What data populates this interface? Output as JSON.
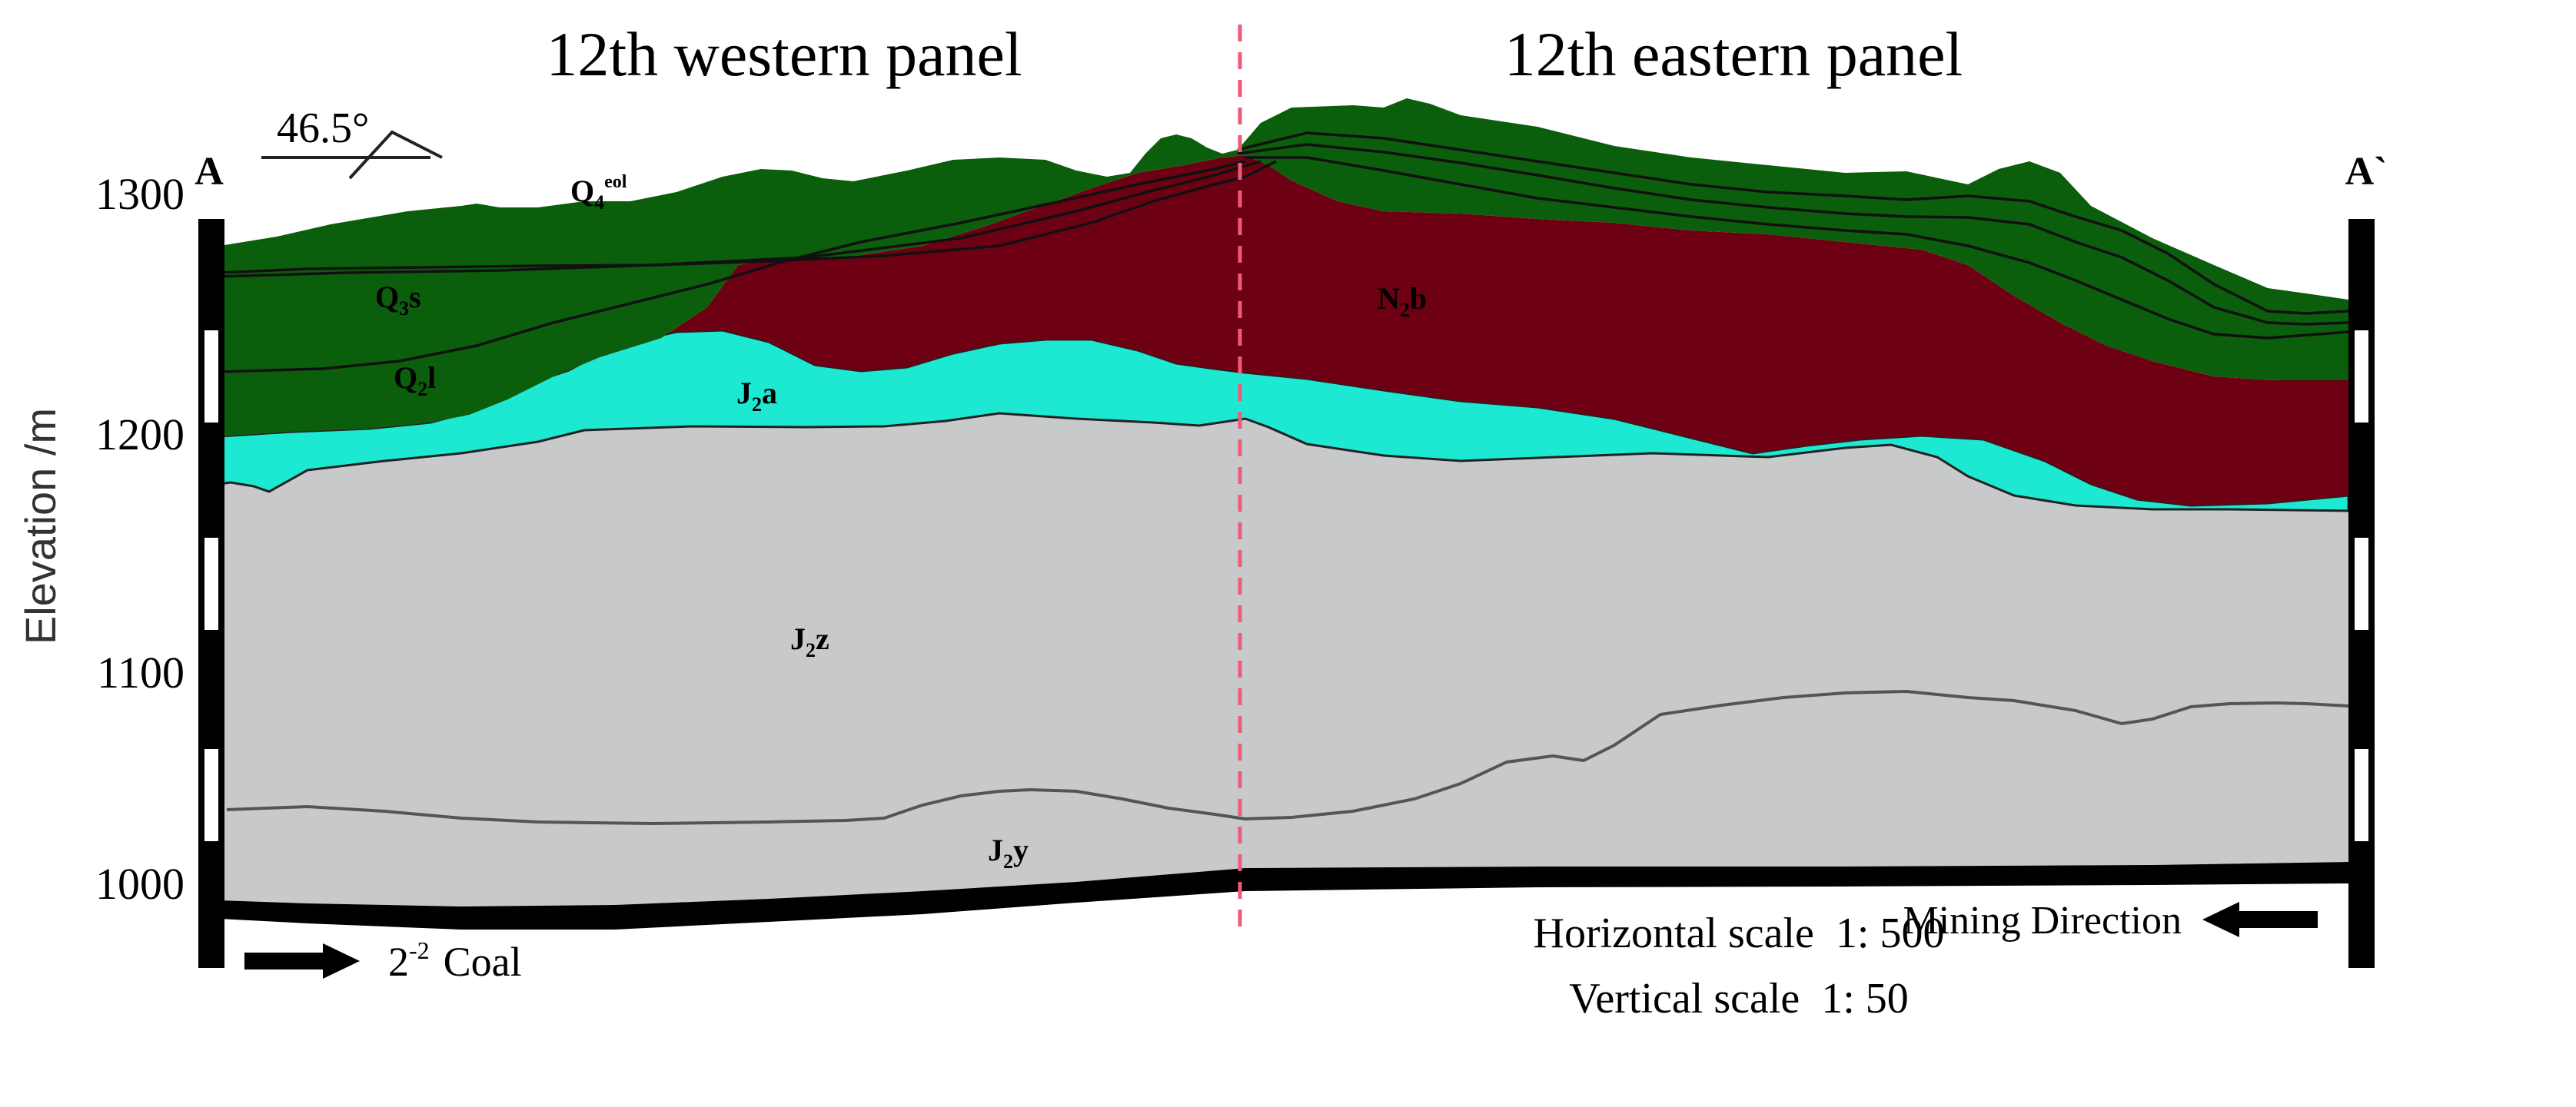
{
  "titles": {
    "west": "12th western panel",
    "east": "12th eastern panel"
  },
  "section": {
    "start": "A",
    "end": "A`"
  },
  "dip": {
    "label": "46.5°"
  },
  "axis": {
    "label": "Elevation /m",
    "ticks": [
      "1300",
      "1200",
      "1100",
      "1000"
    ]
  },
  "strata": {
    "q4": {
      "base": "Q",
      "sub": "4",
      "sup": "eol"
    },
    "q3": {
      "base": "Q",
      "sub": "3",
      "tail": "s"
    },
    "q2": {
      "base": "Q",
      "sub": "2",
      "tail": "l"
    },
    "j2a": {
      "base": "J",
      "sub": "2",
      "tail": "a"
    },
    "n2b": {
      "base": "N",
      "sub": "2",
      "tail": "b"
    },
    "j2z": {
      "base": "J",
      "sub": "2",
      "tail": "z"
    },
    "j2y": {
      "base": "J",
      "sub": "2",
      "tail": "y"
    }
  },
  "coal": {
    "prefix": "2",
    "sup": "-2",
    "name": "Coal"
  },
  "mining": {
    "label": "Mining Direction"
  },
  "scales": {
    "horizontal": "Horizontal scale  1: 500",
    "vertical": "Vertical scale  1: 50"
  },
  "colors": {
    "quaternary": "#0b5e0b",
    "neogene": "#6e0014",
    "j2a": "#1de8d2",
    "j2z": "#c8c9cb",
    "divider": "#f05a78"
  },
  "icons": [
    "dip-symbol-icon",
    "arrow-right-icon",
    "arrow-left-icon"
  ]
}
